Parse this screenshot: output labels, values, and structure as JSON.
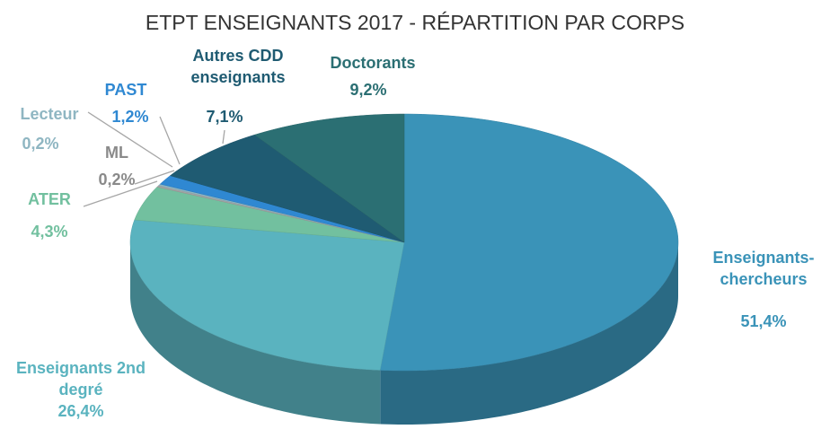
{
  "chart_data": {
    "type": "pie",
    "title": "ETPT ENSEIGNANTS 2017 - RÉPARTITION PAR CORPS",
    "categories": [
      "Enseignants-chercheurs",
      "Enseignants 2nd degré",
      "ATER",
      "ML",
      "Lecteur",
      "PAST",
      "Autres CDD enseignants",
      "Doctorants"
    ],
    "values": [
      51.4,
      26.4,
      4.3,
      0.2,
      0.2,
      1.2,
      7.1,
      9.2
    ],
    "value_labels": [
      "51,4%",
      "26,4%",
      "4,3%",
      "0,2%",
      "0,2%",
      "1,2%",
      "7,1%",
      "9,2%"
    ],
    "colors": [
      "#3a93b8",
      "#5ab3bf",
      "#72c09f",
      "#a3a3a3",
      "#8fb6c2",
      "#2f88d2",
      "#1f5b72",
      "#2b6f73"
    ],
    "label_colors": [
      "#3a93b8",
      "#5ab3bf",
      "#72c09f",
      "#8a8a8a",
      "#8fb6c2",
      "#2f88d2",
      "#1f5b72",
      "#2b6f73"
    ]
  }
}
